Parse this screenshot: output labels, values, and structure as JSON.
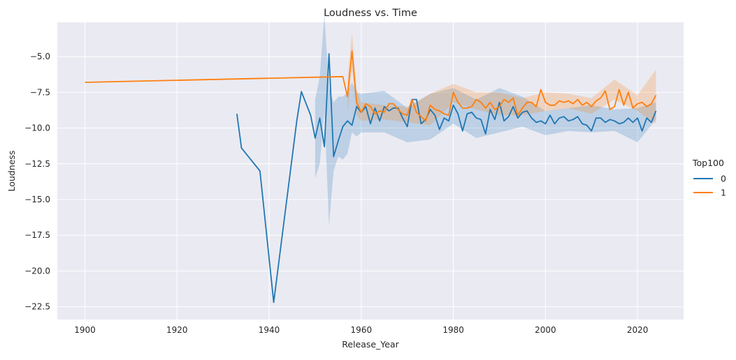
{
  "chart_data": {
    "type": "line",
    "title": "Loudness vs. Time",
    "xlabel": "Release_Year",
    "ylabel": "Loudness",
    "xlim": [
      1894,
      2030
    ],
    "ylim": [
      -23.4,
      -2.6
    ],
    "xticks": [
      1900,
      1920,
      1940,
      1960,
      1980,
      2000,
      2020
    ],
    "yticks": [
      -22.5,
      -20.0,
      -17.5,
      -15.0,
      -12.5,
      -10.0,
      -7.5,
      -5.0
    ],
    "xtick_labels": [
      "1900",
      "1920",
      "1940",
      "1960",
      "1980",
      "2000",
      "2020"
    ],
    "ytick_labels": [
      "−22.5",
      "−20.0",
      "−17.5",
      "−15.0",
      "−12.5",
      "−10.0",
      "−7.5",
      "−5.0"
    ],
    "grid": true,
    "background": "#eaeaf2",
    "legend": {
      "title": "Top100",
      "placement": "right",
      "entries": [
        "0",
        "1"
      ]
    },
    "series": [
      {
        "name": "0",
        "color": "#1f77b4",
        "x": [
          1933,
          1934,
          1938,
          1941,
          1946,
          1947,
          1949,
          1950,
          1951,
          1952,
          1953,
          1954,
          1955,
          1956,
          1957,
          1958,
          1959,
          1960,
          1961,
          1962,
          1963,
          1964,
          1965,
          1966,
          1967,
          1968,
          1969,
          1970,
          1971,
          1972,
          1973,
          1974,
          1975,
          1976,
          1977,
          1978,
          1979,
          1980,
          1981,
          1982,
          1983,
          1984,
          1985,
          1986,
          1987,
          1988,
          1989,
          1990,
          1991,
          1992,
          1993,
          1994,
          1995,
          1996,
          1997,
          1998,
          1999,
          2000,
          2001,
          2002,
          2003,
          2004,
          2005,
          2006,
          2007,
          2008,
          2009,
          2010,
          2011,
          2012,
          2013,
          2014,
          2015,
          2016,
          2017,
          2018,
          2019,
          2020,
          2021,
          2022,
          2023,
          2024
        ],
        "y": [
          -9.0,
          -11.4,
          -13.0,
          -22.2,
          -9.5,
          -7.45,
          -9.1,
          -10.7,
          -9.3,
          -11.3,
          -4.8,
          -12.0,
          -10.9,
          -9.9,
          -9.5,
          -9.8,
          -8.5,
          -8.9,
          -8.5,
          -9.7,
          -8.6,
          -9.5,
          -8.5,
          -8.8,
          -8.6,
          -8.6,
          -9.3,
          -9.9,
          -8.0,
          -8.0,
          -9.7,
          -9.4,
          -8.7,
          -9.1,
          -10.1,
          -9.3,
          -9.5,
          -8.4,
          -9.0,
          -10.2,
          -9.0,
          -8.9,
          -9.3,
          -9.4,
          -10.4,
          -8.7,
          -9.4,
          -8.2,
          -9.5,
          -9.2,
          -8.5,
          -9.3,
          -8.9,
          -8.8,
          -9.3,
          -9.6,
          -9.5,
          -9.7,
          -9.1,
          -9.7,
          -9.3,
          -9.2,
          -9.5,
          -9.4,
          -9.2,
          -9.7,
          -9.8,
          -10.2,
          -9.3,
          -9.3,
          -9.6,
          -9.4,
          -9.5,
          -9.7,
          -9.6,
          -9.3,
          -9.6,
          -9.3,
          -10.2,
          -9.3,
          -9.6,
          -8.8
        ]
      },
      {
        "name": "1",
        "color": "#ff7f0e",
        "x": [
          1900,
          1956,
          1957,
          1958,
          1959,
          1960,
          1961,
          1962,
          1963,
          1964,
          1965,
          1966,
          1967,
          1968,
          1969,
          1970,
          1971,
          1972,
          1973,
          1974,
          1975,
          1976,
          1977,
          1978,
          1979,
          1980,
          1981,
          1982,
          1983,
          1984,
          1985,
          1986,
          1987,
          1988,
          1989,
          1990,
          1991,
          1992,
          1993,
          1994,
          1995,
          1996,
          1997,
          1998,
          1999,
          2000,
          2001,
          2002,
          2003,
          2004,
          2005,
          2006,
          2007,
          2008,
          2009,
          2010,
          2011,
          2012,
          2013,
          2014,
          2015,
          2016,
          2017,
          2018,
          2019,
          2020,
          2021,
          2022,
          2023,
          2024
        ],
        "y": [
          -6.8,
          -6.4,
          -7.8,
          -4.6,
          -8.2,
          -8.9,
          -8.3,
          -8.5,
          -9.0,
          -8.8,
          -8.9,
          -8.3,
          -8.3,
          -8.7,
          -9.0,
          -9.1,
          -8.0,
          -8.9,
          -9.2,
          -9.5,
          -8.4,
          -8.7,
          -8.8,
          -9.0,
          -9.1,
          -7.5,
          -8.2,
          -8.6,
          -8.6,
          -8.5,
          -8.0,
          -8.2,
          -8.6,
          -8.2,
          -8.7,
          -8.5,
          -8.0,
          -8.2,
          -7.9,
          -9.1,
          -8.6,
          -8.2,
          -8.2,
          -8.5,
          -7.3,
          -8.2,
          -8.4,
          -8.4,
          -8.1,
          -8.2,
          -8.1,
          -8.3,
          -8.0,
          -8.4,
          -8.2,
          -8.5,
          -8.1,
          -7.9,
          -7.4,
          -8.7,
          -8.5,
          -7.3,
          -8.4,
          -7.5,
          -8.6,
          -8.3,
          -8.2,
          -8.5,
          -8.3,
          -7.7
        ]
      }
    ],
    "bands": [
      {
        "series": "0",
        "x": [
          1950,
          1951,
          1952,
          1953,
          1954,
          1955,
          1956,
          1957,
          1958,
          1959,
          1960,
          1965,
          1970,
          1975,
          1980,
          1985,
          1990,
          1995,
          2000,
          2005,
          2010,
          2015,
          2020,
          2024
        ],
        "lower": [
          -13.5,
          -12.5,
          -8.8,
          -16.8,
          -13.0,
          -12.0,
          -12.2,
          -11.8,
          -10.3,
          -10.6,
          -10.3,
          -10.3,
          -11.0,
          -10.8,
          -9.7,
          -10.7,
          -10.3,
          -9.9,
          -10.5,
          -10.2,
          -10.3,
          -10.2,
          -11.0,
          -9.4
        ],
        "upper": [
          -8.0,
          -6.4,
          -2.0,
          -7.2,
          -8.2,
          -7.8,
          -7.8,
          -7.5,
          -6.8,
          -7.5,
          -7.6,
          -7.4,
          -8.6,
          -7.6,
          -7.2,
          -8.0,
          -7.2,
          -7.8,
          -8.8,
          -8.6,
          -8.4,
          -8.7,
          -8.6,
          -8.2
        ]
      },
      {
        "series": "1",
        "x": [
          1957,
          1958,
          1959,
          1960,
          1965,
          1970,
          1975,
          1980,
          1985,
          1990,
          1995,
          2000,
          2005,
          2010,
          2015,
          2020,
          2024
        ],
        "lower": [
          -9.0,
          -5.9,
          -9.1,
          -9.5,
          -9.4,
          -9.6,
          -9.8,
          -8.2,
          -8.7,
          -9.1,
          -9.1,
          -8.8,
          -8.6,
          -9.0,
          -8.0,
          -8.8,
          -9.7
        ],
        "upper": [
          -6.6,
          -3.3,
          -7.3,
          -8.2,
          -8.4,
          -8.5,
          -7.6,
          -6.9,
          -7.5,
          -7.5,
          -7.9,
          -7.5,
          -7.6,
          -7.9,
          -6.6,
          -7.7,
          -5.9
        ]
      }
    ]
  }
}
